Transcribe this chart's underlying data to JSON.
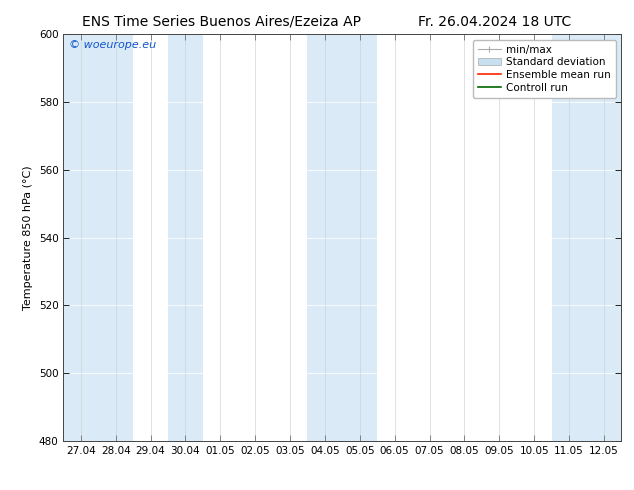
{
  "title_left": "ENS Time Series Buenos Aires/Ezeiza AP",
  "title_right": "Fr. 26.04.2024 18 UTC",
  "ylabel": "Temperature 850 hPa (°C)",
  "xlabels": [
    "27.04",
    "28.04",
    "29.04",
    "30.04",
    "01.05",
    "02.05",
    "03.05",
    "04.05",
    "05.05",
    "06.05",
    "07.05",
    "08.05",
    "09.05",
    "10.05",
    "11.05",
    "12.05"
  ],
  "ylim": [
    480,
    600
  ],
  "yticks": [
    480,
    500,
    520,
    540,
    560,
    580,
    600
  ],
  "bg_color": "#ffffff",
  "shaded_indices": [
    0,
    1,
    3,
    7,
    8,
    14,
    15
  ],
  "shaded_color": "#daeaf7",
  "watermark": "© woeurope.eu",
  "watermark_color": "#1155cc",
  "title_fontsize": 10,
  "axis_fontsize": 8,
  "tick_fontsize": 7.5,
  "watermark_fontsize": 8,
  "legend_fontsize": 7.5,
  "minmax_color": "#aaaaaa",
  "std_facecolor": "#c8dff0",
  "std_edgecolor": "#aaaaaa",
  "ens_color": "#ff2200",
  "ctrl_color": "#006600"
}
